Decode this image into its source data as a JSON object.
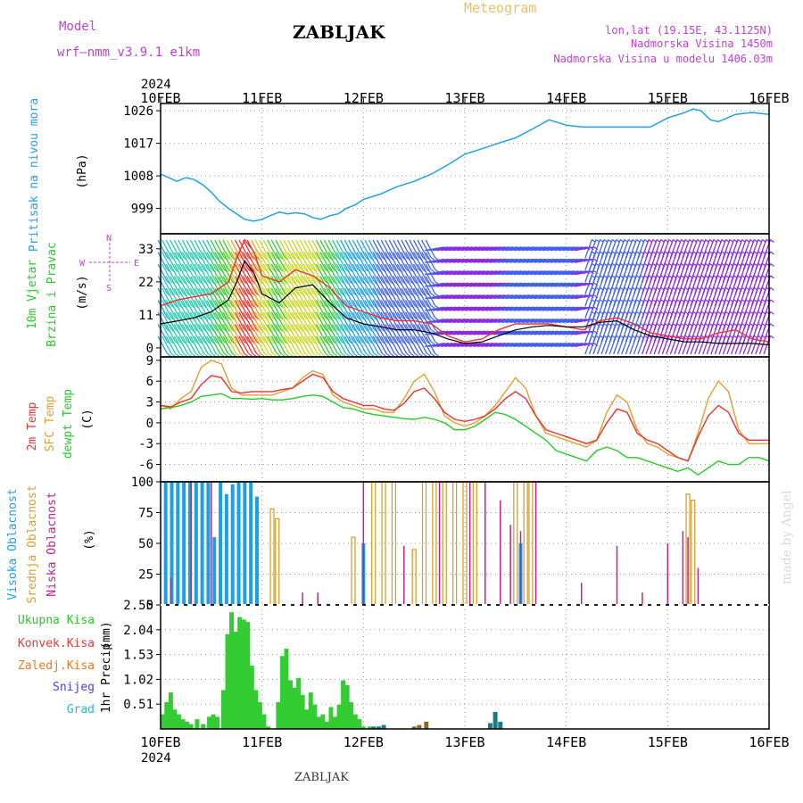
{
  "header": {
    "model_label": "Model",
    "model_name": "wrf—nmm_v3.9.1 e1km",
    "title": "ZABLJAK",
    "meteogram_label": "Meteogram",
    "lonlat": "lon,lat (19.15E, 43.1125N)",
    "altitude": "Nadmorska Visina 1450m",
    "model_altitude": "Nadmorska Visina u modelu 1406.03m",
    "year_top": "2024",
    "year_bottom": "2024",
    "footer_title": "ZABLJAK",
    "credit": "made by Angel"
  },
  "colors": {
    "pressure": "#1fa0e8",
    "temp2m": "#ee3030",
    "sfc_temp": "#e0a030",
    "dewpoint": "#22cc22",
    "label_magenta": "#c040d0",
    "high_cloud": "#1aa0e8",
    "mid_cloud": "#d8a030",
    "low_cloud": "#c02090",
    "total_precip": "#33cc33",
    "conv_precip": "#ee3333",
    "frozen_precip": "#ee7722",
    "snow": "#4444ee",
    "graupel": "#22bbcc"
  },
  "x_axis": {
    "ticks": [
      "10FEB",
      "11FEB",
      "12FEB",
      "13FEB",
      "14FEB",
      "15FEB",
      "16FEB"
    ]
  },
  "panel_labels": {
    "pressure": [
      "Pritisak na nivou mora",
      "(hPa)"
    ],
    "wind": [
      "10m Vjetar",
      "Brzina i Pravac",
      "(m/s)"
    ],
    "wind_compass": {
      "n": "N",
      "s": "S",
      "w": "W",
      "e": "E"
    },
    "temperature": [
      "2m Temp",
      "SFC Temp",
      "dewpt Temp",
      "(C)"
    ],
    "clouds": [
      "Visoka Oblacnost",
      "Srednja Oblacnost",
      "Niska Oblacnost",
      "(%)"
    ],
    "precip_legend": [
      "Ukupna Kisa",
      "Konvek.Kisa",
      "Zaledj.Kisa",
      "Snijeg",
      "Grad"
    ],
    "precip_axis": [
      "1hr Precip",
      "(mm)"
    ]
  },
  "chart_data": [
    {
      "type": "line",
      "panel": "pressure",
      "ylabel": "Pritisak na nivou mora (hPa)",
      "ylim": [
        992,
        1028
      ],
      "yticks": [
        999,
        1008,
        1017,
        1026
      ],
      "x_days": [
        0,
        0.08,
        0.16,
        0.25,
        0.33,
        0.42,
        0.5,
        0.58,
        0.67,
        0.75,
        0.83,
        0.92,
        1.0,
        1.08,
        1.17,
        1.25,
        1.33,
        1.42,
        1.5,
        1.58,
        1.67,
        1.75,
        1.83,
        1.92,
        2.0,
        2.17,
        2.33,
        2.5,
        2.67,
        2.83,
        3.0,
        3.17,
        3.33,
        3.5,
        3.67,
        3.83,
        4.0,
        4.17,
        4.33,
        4.5,
        4.67,
        4.83,
        5.0,
        5.17,
        5.25,
        5.33,
        5.42,
        5.5,
        5.67,
        5.83,
        6.0
      ],
      "series": [
        {
          "values": [
            1008.5,
            1007.5,
            1006.5,
            1007.5,
            1007,
            1005.5,
            1003.5,
            1001,
            999,
            997.5,
            996,
            995.5,
            996,
            997,
            998,
            997.5,
            997.8,
            997.5,
            996.5,
            996,
            997,
            997.5,
            999,
            1000,
            1001.5,
            1003,
            1005,
            1006.5,
            1008.5,
            1011,
            1014,
            1015.5,
            1017,
            1018.5,
            1021,
            1023.5,
            1022,
            1021.5,
            1021.5,
            1021.5,
            1021.5,
            1021.5,
            1024,
            1025.5,
            1026.5,
            1026,
            1023.5,
            1023,
            1025,
            1025.5,
            1025
          ]
        }
      ]
    },
    {
      "type": "line",
      "panel": "wind",
      "ylabel": "10m Vjetar Brzina i Pravac (m/s)",
      "ylim": [
        -3,
        38
      ],
      "yticks": [
        0,
        11,
        22,
        33
      ],
      "x_days": [
        0,
        0.17,
        0.33,
        0.5,
        0.67,
        0.75,
        0.83,
        0.92,
        1.0,
        1.17,
        1.33,
        1.5,
        1.67,
        1.83,
        2.0,
        2.17,
        2.33,
        2.5,
        2.67,
        2.83,
        3.0,
        3.17,
        3.33,
        3.5,
        3.67,
        3.83,
        4.0,
        4.17,
        4.33,
        4.5,
        4.67,
        4.83,
        5.0,
        5.17,
        5.33,
        5.5,
        5.67,
        5.83,
        6.0
      ],
      "series": [
        {
          "values": [
            8,
            9,
            10,
            12,
            16,
            22,
            29,
            25,
            18,
            15,
            20,
            21,
            15,
            10,
            8,
            7,
            6,
            6,
            5,
            3,
            1.5,
            2,
            4,
            6,
            7,
            7.5,
            7,
            7,
            8.5,
            9,
            6,
            4,
            3,
            2,
            2,
            1.5,
            1.5,
            1.5,
            1
          ]
        },
        {
          "values": [
            14,
            16,
            17,
            18,
            22,
            30,
            36,
            32,
            24,
            22,
            26,
            24,
            20,
            14,
            12,
            10,
            9,
            9,
            8,
            4,
            2,
            3,
            6,
            8,
            8,
            8,
            7,
            6,
            9,
            10,
            8,
            5,
            4,
            3,
            3,
            5,
            6,
            3,
            2
          ]
        }
      ]
    },
    {
      "type": "line",
      "panel": "temperature",
      "ylabel": "(C)",
      "ylim": [
        -8.5,
        9.5
      ],
      "yticks": [
        -6,
        -3,
        0,
        3,
        6,
        9
      ],
      "x_days": [
        0,
        0.1,
        0.2,
        0.3,
        0.4,
        0.5,
        0.6,
        0.7,
        0.8,
        0.9,
        1.0,
        1.1,
        1.2,
        1.3,
        1.4,
        1.5,
        1.6,
        1.7,
        1.8,
        1.9,
        2.0,
        2.1,
        2.2,
        2.3,
        2.4,
        2.5,
        2.6,
        2.7,
        2.8,
        2.9,
        3.0,
        3.1,
        3.2,
        3.3,
        3.4,
        3.5,
        3.6,
        3.7,
        3.8,
        3.9,
        4.0,
        4.1,
        4.2,
        4.3,
        4.4,
        4.5,
        4.6,
        4.7,
        4.8,
        4.9,
        5.0,
        5.1,
        5.2,
        5.3,
        5.4,
        5.5,
        5.6,
        5.7,
        5.8,
        5.9,
        6.0
      ],
      "series": [
        {
          "name": "2m Temp",
          "values": [
            2.5,
            2.3,
            3.0,
            3.5,
            5.5,
            6.8,
            6.5,
            4.5,
            4.3,
            4.5,
            4.5,
            4.5,
            4.8,
            5.0,
            6.0,
            7.0,
            6.5,
            4.5,
            3.5,
            3.0,
            2.5,
            2.5,
            2.0,
            1.8,
            2.8,
            4.5,
            5.0,
            3.5,
            1.5,
            0.5,
            0.2,
            0.5,
            1.0,
            2.0,
            3.5,
            4.5,
            3.5,
            1.0,
            -1.0,
            -1.5,
            -2.0,
            -2.5,
            -3.0,
            -2.5,
            0.0,
            2.0,
            1.5,
            -1.5,
            -2.5,
            -3.0,
            -4.0,
            -5.0,
            -5.5,
            -2.0,
            1.0,
            2.5,
            1.5,
            -1.5,
            -2.5,
            -2.5,
            -2.5
          ]
        },
        {
          "name": "SFC Temp",
          "values": [
            2.5,
            2.0,
            3.5,
            4.5,
            8.0,
            9.0,
            8.5,
            5.0,
            4.0,
            4.0,
            4.0,
            4.0,
            4.5,
            5.0,
            6.5,
            7.5,
            7.0,
            4.0,
            3.0,
            2.5,
            2.0,
            2.0,
            1.5,
            1.5,
            3.5,
            6.0,
            7.0,
            4.5,
            1.0,
            0.0,
            -0.5,
            0.0,
            1.0,
            2.5,
            4.5,
            6.5,
            5.0,
            1.0,
            -1.5,
            -2.0,
            -2.5,
            -3.0,
            -3.5,
            -2.5,
            1.5,
            4.0,
            3.0,
            -1.0,
            -3.0,
            -3.5,
            -4.5,
            -5.0,
            -5.5,
            -1.5,
            3.5,
            6.0,
            4.5,
            -1.0,
            -3.0,
            -3.0,
            -3.0
          ]
        },
        {
          "name": "dewpt Temp",
          "values": [
            2.0,
            2.2,
            2.5,
            3.0,
            3.8,
            4.0,
            4.2,
            3.5,
            3.5,
            3.4,
            3.5,
            3.3,
            3.3,
            3.5,
            3.8,
            4.0,
            3.8,
            3.0,
            2.2,
            2.0,
            1.5,
            1.2,
            1.0,
            0.8,
            0.6,
            0.5,
            0.8,
            0.5,
            0.0,
            -1.0,
            -1.0,
            -0.5,
            0.5,
            1.5,
            1.2,
            0.5,
            -0.5,
            -1.5,
            -2.5,
            -4.0,
            -4.5,
            -5.0,
            -5.5,
            -4.0,
            -3.5,
            -4.0,
            -5.0,
            -5.0,
            -5.5,
            -6.0,
            -6.5,
            -7.0,
            -6.5,
            -7.5,
            -6.5,
            -5.5,
            -6.0,
            -6.0,
            -5.0,
            -5.0,
            -5.5
          ]
        }
      ]
    },
    {
      "type": "bar",
      "panel": "clouds",
      "ylabel": "(%)",
      "ylim": [
        0,
        100
      ],
      "yticks": [
        0,
        25,
        50,
        75,
        100
      ],
      "series": [
        {
          "name": "Visoka Oblacnost",
          "x_days": [
            0.05,
            0.11,
            0.17,
            0.23,
            0.29,
            0.35,
            0.41,
            0.47,
            0.53,
            0.59,
            0.65,
            0.71,
            0.77,
            0.83,
            0.89,
            0.95,
            2.0,
            3.55
          ],
          "values": [
            100,
            100,
            100,
            100,
            100,
            100,
            100,
            100,
            55,
            100,
            90,
            98,
            100,
            100,
            100,
            88,
            50,
            50
          ]
        },
        {
          "name": "Srednja Oblacnost",
          "x_days": [
            1.1,
            1.15,
            1.9,
            2.1,
            2.2,
            2.3,
            2.5,
            2.6,
            2.7,
            2.8,
            2.9,
            3.0,
            3.1,
            3.5,
            3.6,
            3.65,
            5.2,
            5.25
          ],
          "values": [
            78,
            70,
            55,
            100,
            100,
            100,
            45,
            100,
            100,
            100,
            100,
            100,
            100,
            100,
            100,
            100,
            90,
            85
          ]
        },
        {
          "name": "Niska Oblacnost",
          "x_days": [
            0.1,
            0.3,
            0.5,
            1.4,
            1.55,
            2.0,
            2.4,
            2.75,
            3.05,
            3.2,
            3.35,
            3.45,
            3.55,
            3.7,
            4.15,
            4.5,
            4.75,
            5.0,
            5.15,
            5.2,
            5.3
          ],
          "values": [
            22,
            100,
            100,
            10,
            10,
            100,
            48,
            100,
            100,
            100,
            85,
            65,
            60,
            100,
            18,
            48,
            10,
            50,
            60,
            55,
            30
          ]
        }
      ]
    },
    {
      "type": "bar",
      "panel": "precipitation",
      "ylabel": "1hr Precip (mm)",
      "ylim": [
        0,
        2.55
      ],
      "yticks": [
        0.51,
        1.02,
        1.53,
        2.04,
        2.55
      ],
      "series": [
        {
          "name": "Ukupna Kisa",
          "x_days": [
            0.02,
            0.06,
            0.1,
            0.14,
            0.18,
            0.22,
            0.26,
            0.3,
            0.36,
            0.42,
            0.48,
            0.52,
            0.56,
            0.62,
            0.66,
            0.7,
            0.74,
            0.78,
            0.82,
            0.86,
            0.9,
            0.94,
            0.98,
            1.02,
            1.06,
            1.16,
            1.2,
            1.24,
            1.28,
            1.32,
            1.36,
            1.4,
            1.44,
            1.48,
            1.52,
            1.56,
            1.6,
            1.64,
            1.68,
            1.72,
            1.76,
            1.8,
            1.84,
            1.88,
            1.92,
            1.96,
            2.0,
            2.06
          ],
          "values": [
            0.3,
            0.55,
            0.75,
            0.4,
            0.3,
            0.2,
            0.15,
            0.1,
            0.2,
            0.1,
            0.25,
            0.3,
            0.25,
            0.8,
            1.95,
            2.4,
            2.0,
            2.3,
            2.25,
            2.2,
            1.3,
            0.8,
            0.55,
            0.3,
            0.05,
            0.55,
            1.5,
            1.65,
            1.0,
            0.85,
            1.05,
            0.7,
            0.4,
            0.75,
            0.5,
            0.25,
            0.3,
            0.15,
            0.45,
            0.25,
            0.5,
            1.0,
            0.9,
            0.55,
            0.3,
            0.2,
            0.05,
            0.05
          ]
        },
        {
          "name": "Zaledj.Kisa",
          "x_days": [
            2.5,
            2.55,
            2.62
          ],
          "values": [
            0.05,
            0.08,
            0.15
          ]
        },
        {
          "name": "Grad",
          "x_days": [
            2.1,
            2.15,
            2.2,
            3.25,
            3.3,
            3.35
          ],
          "values": [
            0.05,
            0.05,
            0.08,
            0.12,
            0.35,
            0.15
          ]
        }
      ]
    }
  ]
}
